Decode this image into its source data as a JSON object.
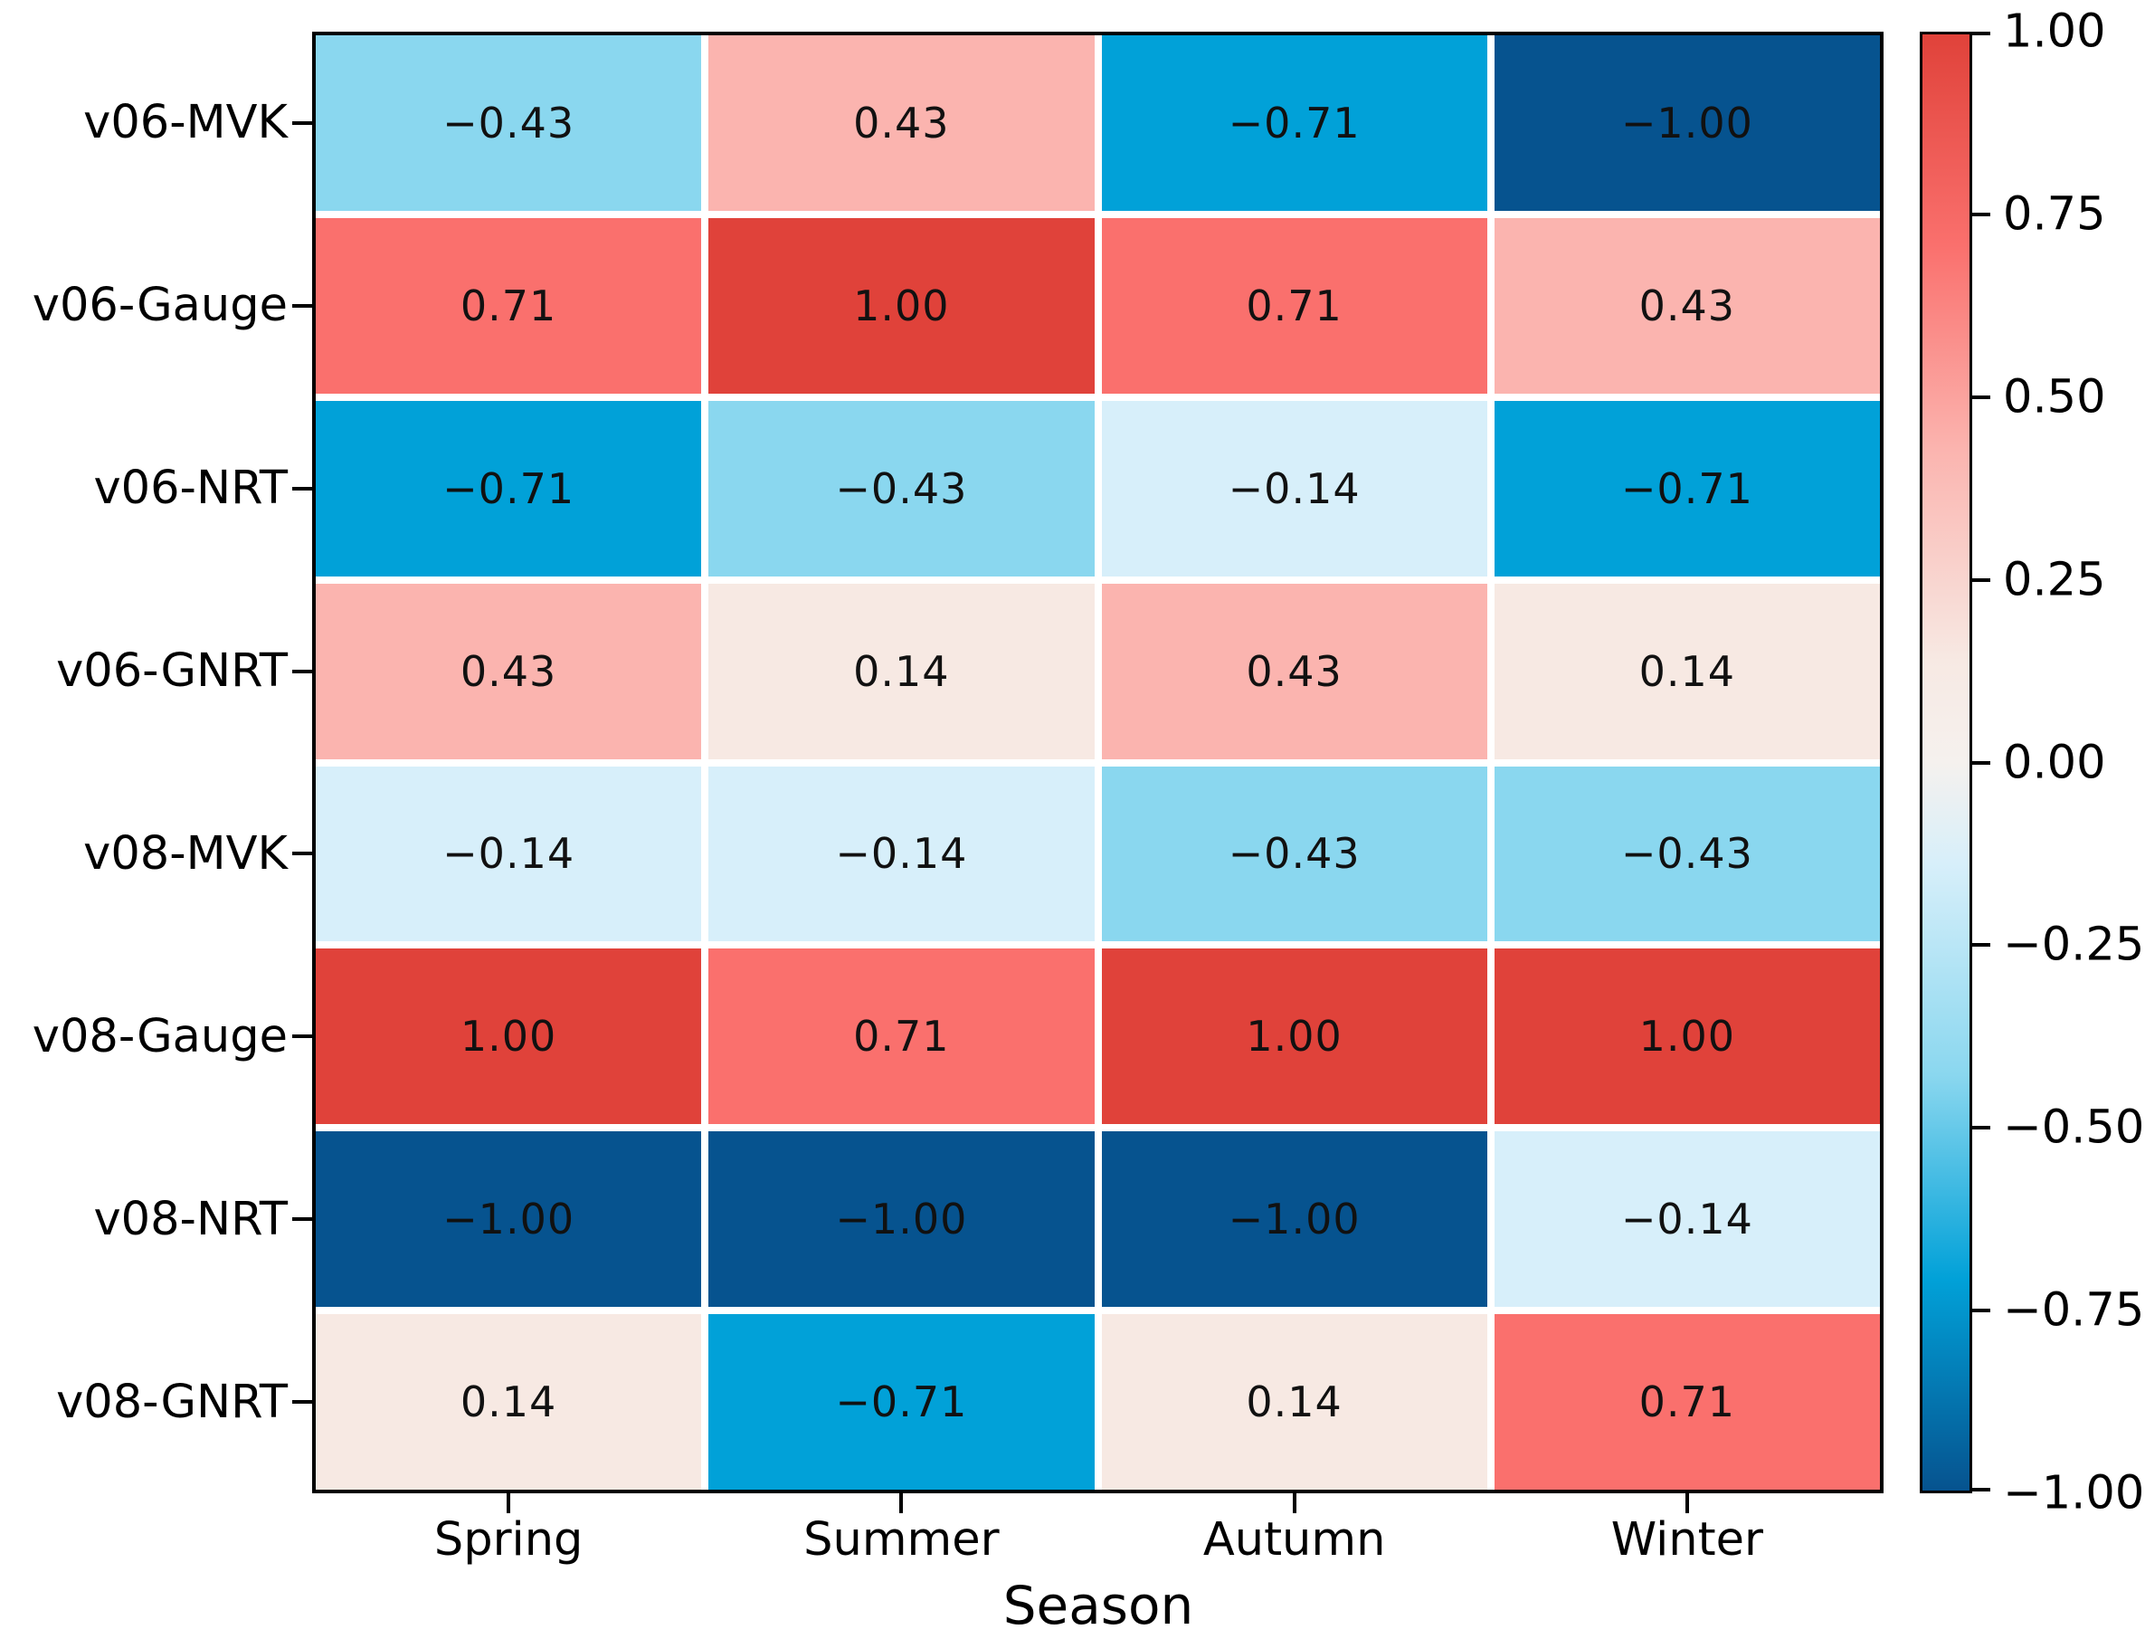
{
  "chart_data": {
    "type": "heatmap",
    "title": "",
    "xlabel": "Season",
    "ylabel": "",
    "columns": [
      "Spring",
      "Summer",
      "Autumn",
      "Winter"
    ],
    "rows": [
      "v06-MVK",
      "v06-Gauge",
      "v06-NRT",
      "v06-GNRT",
      "v08-MVK",
      "v08-Gauge",
      "v08-NRT",
      "v08-GNRT"
    ],
    "values": [
      [
        -0.43,
        0.43,
        -0.71,
        -1
      ],
      [
        0.71,
        1,
        0.71,
        0.43
      ],
      [
        -0.71,
        -0.43,
        -0.14,
        -0.71
      ],
      [
        0.43,
        0.14,
        0.43,
        0.14
      ],
      [
        -0.14,
        -0.14,
        -0.43,
        -0.43
      ],
      [
        1,
        0.71,
        1,
        1
      ],
      [
        -1,
        -1,
        -1,
        -0.14
      ],
      [
        0.14,
        -0.71,
        0.14,
        0.71
      ]
    ],
    "cell_labels": [
      [
        "−0.43",
        "0.43",
        "−0.71",
        "−1.00"
      ],
      [
        "0.71",
        "1.00",
        "0.71",
        "0.43"
      ],
      [
        "−0.71",
        "−0.43",
        "−0.14",
        "−0.71"
      ],
      [
        "0.43",
        "0.14",
        "0.43",
        "0.14"
      ],
      [
        "−0.14",
        "−0.14",
        "−0.43",
        "−0.43"
      ],
      [
        "1.00",
        "0.71",
        "1.00",
        "1.00"
      ],
      [
        "−1.00",
        "−1.00",
        "−1.00",
        "−0.14"
      ],
      [
        "0.14",
        "−0.71",
        "0.14",
        "0.71"
      ]
    ],
    "vmin": -1,
    "vmax": 1,
    "grid": "white cell separators",
    "legend_position": "right colorbar",
    "value_colors": {
      "1": "#e0423a",
      "0.71": "#fa706d",
      "0.43": "#fbb4af",
      "0.14": "#f7e9e3",
      "-0.14": "#d7effa",
      "-0.43": "#8ad7ef",
      "-0.71": "#01a1d8",
      "-1": "#06538f"
    },
    "colorbar": {
      "tick_values": [
        1,
        0.75,
        0.5,
        0.25,
        0,
        -0.25,
        -0.5,
        -0.75,
        -1
      ],
      "tick_labels": [
        "1.00",
        "0.75",
        "0.50",
        "0.25",
        "0.00",
        "−0.25",
        "−0.50",
        "−0.75",
        "−1.00"
      ],
      "gradient_stops": [
        {
          "pos": 0,
          "color": "#e0423a"
        },
        {
          "pos": 14.5,
          "color": "#fa706d"
        },
        {
          "pos": 28.5,
          "color": "#fbb4af"
        },
        {
          "pos": 43,
          "color": "#f7e9e3"
        },
        {
          "pos": 50,
          "color": "#f5f1ee"
        },
        {
          "pos": 57,
          "color": "#d7effa"
        },
        {
          "pos": 71.5,
          "color": "#8ad7ef"
        },
        {
          "pos": 85.5,
          "color": "#01a1d8"
        },
        {
          "pos": 100,
          "color": "#06538f"
        }
      ]
    },
    "text_color": "#111111",
    "spine_color": "#000000"
  }
}
